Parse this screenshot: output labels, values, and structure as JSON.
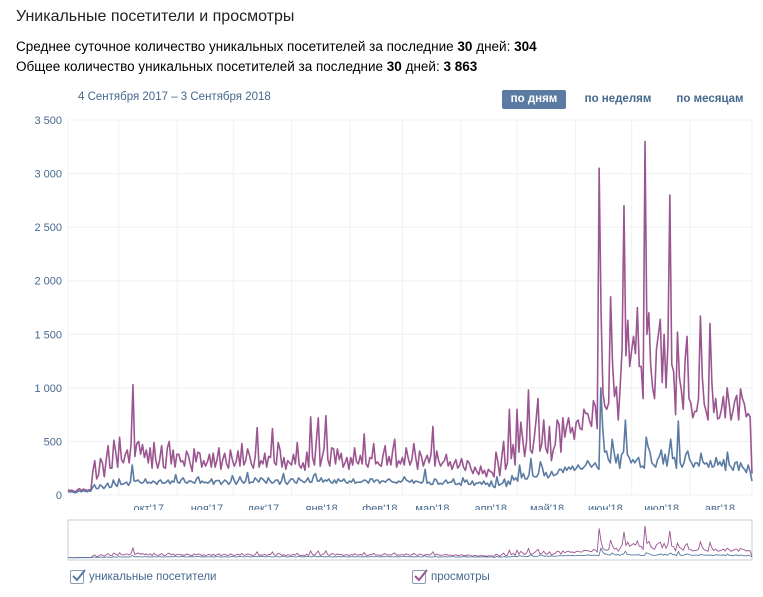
{
  "page": {
    "title": "Уникальные посетители и просмотры",
    "stat_daily_prefix": "Среднее суточное количество уникальных посетителей за последние ",
    "stat_daily_days": "30",
    "stat_daily_middle": " дней: ",
    "stat_daily_value": "304",
    "stat_total_prefix": "Общее количество уникальных посетителей за последние ",
    "stat_total_days": "30",
    "stat_total_middle": " дней: ",
    "stat_total_value": "3 863",
    "date_range": "4 Сентября 2017 – 3 Сентября 2018"
  },
  "periods": {
    "day": "по дням",
    "week": "по неделям",
    "month": "по месяцам",
    "active": "day"
  },
  "legend": {
    "visitors": "уникальные посетители",
    "views": "просмотры"
  },
  "colors": {
    "visitors": "#5b7ba2",
    "views": "#9b5591",
    "grid": "#eef0f3",
    "axis_text": "#45688e"
  },
  "chart_data": {
    "type": "line",
    "x_range": [
      "2017-09-04",
      "2018-09-03"
    ],
    "ylim": [
      0,
      3500
    ],
    "y_ticks": [
      0,
      500,
      1000,
      1500,
      2000,
      2500,
      3000,
      3500
    ],
    "y_tick_labels": [
      "0",
      "500",
      "1 000",
      "1 500",
      "2 000",
      "2 500",
      "3 000",
      "3 500"
    ],
    "x_ticks": [
      {
        "label": "окт'17",
        "date": "2017-10-01"
      },
      {
        "label": "ноя'17",
        "date": "2017-11-01"
      },
      {
        "label": "дек'17",
        "date": "2017-12-01"
      },
      {
        "label": "янв'18",
        "date": "2018-01-01"
      },
      {
        "label": "фев'18",
        "date": "2018-02-01"
      },
      {
        "label": "мар'18",
        "date": "2018-03-01"
      },
      {
        "label": "апр'18",
        "date": "2018-04-01"
      },
      {
        "label": "май'18",
        "date": "2018-05-01"
      },
      {
        "label": "июн'18",
        "date": "2018-06-01"
      },
      {
        "label": "июл'18",
        "date": "2018-07-01"
      },
      {
        "label": "авг'18",
        "date": "2018-08-01"
      }
    ],
    "grid": true,
    "legend_position": "bottom",
    "series": [
      {
        "name": "уникальные посетители",
        "values": [
          30,
          30,
          30,
          25,
          20,
          30,
          40,
          30,
          40,
          35,
          30,
          40,
          35,
          70,
          95,
          60,
          60,
          95,
          80,
          60,
          85,
          110,
          70,
          75,
          140,
          100,
          80,
          150,
          100,
          100,
          110,
          120,
          90,
          120,
          280,
          130,
          130,
          140,
          120,
          110,
          120,
          150,
          110,
          120,
          110,
          130,
          120,
          100,
          130,
          140,
          110,
          110,
          120,
          140,
          105,
          130,
          120,
          190,
          120,
          110,
          145,
          160,
          120,
          110,
          130,
          130,
          120,
          110,
          150,
          170,
          110,
          130,
          115,
          120,
          110,
          125,
          150,
          100,
          130,
          135,
          135,
          100,
          120,
          140,
          125,
          100,
          120,
          180,
          135,
          100,
          130,
          170,
          130,
          110,
          130,
          210,
          110,
          120,
          120,
          160,
          140,
          120,
          160,
          150,
          130,
          110,
          160,
          130,
          110,
          120,
          140,
          140,
          100,
          130,
          200,
          120,
          100,
          125,
          150,
          150,
          120,
          110,
          160,
          140,
          130,
          115,
          130,
          160,
          120,
          120,
          180,
          200,
          130,
          130,
          160,
          120,
          140,
          130,
          150,
          120,
          110,
          140,
          110,
          150,
          130,
          130,
          150,
          120,
          110,
          130,
          120,
          150,
          110,
          120,
          120,
          120,
          130,
          140,
          130,
          110,
          150,
          150,
          120,
          140,
          140,
          110,
          130,
          130,
          120,
          140,
          150,
          130,
          120,
          120,
          110,
          130,
          120,
          135,
          170,
          140,
          130,
          120,
          140,
          110,
          130,
          125,
          120,
          110,
          130,
          240,
          110,
          120,
          100,
          100,
          150,
          140,
          100,
          110,
          100,
          120,
          140,
          110,
          120,
          120,
          150,
          100,
          100,
          110,
          90,
          160,
          120,
          140,
          100,
          100,
          130,
          90,
          110,
          110,
          120,
          100,
          130,
          100,
          110,
          80,
          130,
          80,
          70,
          170,
          90,
          100,
          110,
          150,
          80,
          130,
          100,
          180,
          140,
          160,
          130,
          280,
          160,
          200,
          150,
          150,
          190,
          340,
          180,
          170,
          170,
          200,
          310,
          260,
          180,
          210,
          160,
          180,
          220,
          180,
          190,
          200,
          240,
          240,
          210,
          260,
          230,
          260,
          240,
          270,
          230,
          250,
          280,
          250,
          240,
          260,
          280,
          320,
          290,
          260,
          280,
          300,
          260,
          240,
          1000,
          620,
          400,
          410,
          330,
          300,
          520,
          400,
          300,
          380,
          250,
          380,
          400,
          700,
          380,
          350,
          300,
          330,
          300,
          330,
          350,
          260,
          270,
          250,
          540,
          450,
          400,
          300,
          280,
          260,
          330,
          360,
          420,
          290,
          380,
          270,
          390,
          520,
          340,
          350,
          250,
          690,
          300,
          260,
          300,
          380,
          410,
          330,
          300,
          260,
          300,
          300,
          270,
          390,
          310,
          290,
          300,
          260,
          320,
          260,
          270,
          350,
          280,
          310,
          270,
          330,
          230,
          400,
          280,
          260,
          230,
          300,
          310,
          230,
          300,
          260,
          240,
          210,
          280,
          220,
          130
        ]
      },
      {
        "name": "просмотры",
        "values": [
          50,
          40,
          45,
          35,
          30,
          50,
          60,
          40,
          55,
          50,
          40,
          50,
          45,
          220,
          320,
          150,
          190,
          340,
          300,
          170,
          330,
          460,
          250,
          250,
          510,
          400,
          260,
          540,
          330,
          300,
          380,
          420,
          300,
          470,
          1030,
          360,
          480,
          500,
          380,
          470,
          350,
          420,
          300,
          440,
          250,
          490,
          320,
          250,
          330,
          460,
          260,
          250,
          440,
          500,
          290,
          420,
          260,
          380,
          380,
          310,
          320,
          270,
          410,
          370,
          290,
          220,
          430,
          310,
          400,
          390,
          260,
          320,
          270,
          310,
          380,
          260,
          390,
          260,
          330,
          440,
          240,
          330,
          390,
          290,
          250,
          420,
          330,
          270,
          310,
          410,
          270,
          480,
          280,
          320,
          430,
          370,
          290,
          250,
          360,
          630,
          260,
          320,
          290,
          390,
          260,
          360,
          350,
          620,
          300,
          280,
          490,
          420,
          260,
          350,
          240,
          320,
          300,
          280,
          380,
          290,
          490,
          280,
          250,
          300,
          230,
          400,
          260,
          730,
          350,
          280,
          510,
          720,
          270,
          350,
          430,
          740,
          330,
          270,
          440,
          430,
          290,
          430,
          330,
          390,
          260,
          300,
          350,
          240,
          350,
          280,
          440,
          310,
          290,
          370,
          290,
          570,
          290,
          260,
          350,
          340,
          480,
          290,
          310,
          280,
          270,
          380,
          460,
          280,
          360,
          280,
          420,
          520,
          260,
          320,
          290,
          350,
          280,
          440,
          350,
          280,
          330,
          480,
          350,
          240,
          410,
          360,
          270,
          330,
          370,
          300,
          380,
          640,
          270,
          410,
          320,
          270,
          300,
          320,
          380,
          270,
          310,
          240,
          290,
          330,
          250,
          280,
          340,
          260,
          230,
          320,
          300,
          240,
          200,
          260,
          220,
          190,
          270,
          200,
          230,
          170,
          240,
          220,
          210,
          170,
          400,
          310,
          180,
          350,
          500,
          240,
          300,
          800,
          340,
          470,
          280,
          800,
          400,
          680,
          520,
          360,
          500,
          980,
          420,
          390,
          530,
          700,
          900,
          410,
          480,
          700,
          440,
          390,
          640,
          320,
          420,
          470,
          700,
          660,
          400,
          720,
          540,
          640,
          720,
          580,
          630,
          520,
          680,
          700,
          620,
          610,
          800,
          760,
          760,
          690,
          640,
          880,
          830,
          620,
          3050,
          1700,
          950,
          830,
          800,
          860,
          1850,
          1230,
          920,
          1010,
          700,
          1010,
          1360,
          2700,
          1300,
          1630,
          1200,
          1350,
          1480,
          1320,
          1750,
          1200,
          1200,
          900,
          3300,
          1500,
          1700,
          1200,
          1000,
          900,
          1360,
          1500,
          1640,
          1050,
          1500,
          1000,
          1400,
          2800,
          1220,
          1150,
          750,
          1520,
          1100,
          980,
          800,
          1260,
          1480,
          900,
          860,
          720,
          780,
          780,
          900,
          1670,
          1100,
          850,
          780,
          700,
          1600,
          1050,
          770,
          900,
          710,
          720,
          800,
          920,
          720,
          1000,
          860,
          700,
          780,
          880,
          930,
          700,
          990,
          900,
          850,
          730,
          760,
          730,
          200
        ]
      }
    ]
  }
}
